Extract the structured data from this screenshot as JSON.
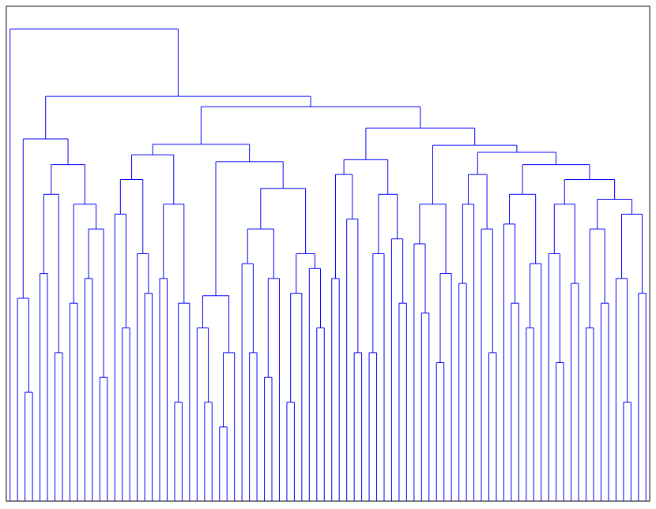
{
  "chart_data": {
    "type": "dendrogram",
    "color": "#0000ff",
    "ylim": [
      0,
      100
    ],
    "tree": {
      "height": 95.4,
      "children": [
        0,
        {
          "height": 81.8,
          "children": [
            {
              "height": 73.2,
              "children": [
                {
                  "height": 41,
                  "children": [
                    0,
                    {
                      "height": 22,
                      "children": [
                        0,
                        0
                      ]
                    }
                  ]
                },
                {
                  "height": 68,
                  "children": [
                    {
                      "height": 62,
                      "children": [
                        {
                          "height": 46,
                          "children": [
                            0,
                            0
                          ]
                        },
                        {
                          "height": 30,
                          "children": [
                            0,
                            0
                          ]
                        }
                      ]
                    },
                    {
                      "height": 60,
                      "children": [
                        {
                          "height": 40,
                          "children": [
                            0,
                            0
                          ]
                        },
                        {
                          "height": 55,
                          "children": [
                            {
                              "height": 45,
                              "children": [
                                0,
                                0
                              ]
                            },
                            {
                              "height": 25,
                              "children": [
                                0,
                                0
                              ]
                            }
                          ]
                        }
                      ]
                    }
                  ]
                }
              ]
            },
            {
              "height": 79.7,
              "children": [
                {
                  "height": 72.1,
                  "children": [
                    {
                      "height": 70,
                      "children": [
                        {
                          "height": 65,
                          "children": [
                            {
                              "height": 58,
                              "children": [
                                0,
                                {
                                  "height": 35,
                                  "children": [
                                    0,
                                    0
                                  ]
                                }
                              ]
                            },
                            {
                              "height": 50,
                              "children": [
                                0,
                                {
                                  "height": 42,
                                  "children": [
                                    0,
                                    0
                                  ]
                                }
                              ]
                            }
                          ]
                        },
                        {
                          "height": 60,
                          "children": [
                            {
                              "height": 45,
                              "children": [
                                0,
                                0
                              ]
                            },
                            {
                              "height": 40,
                              "children": [
                                {
                                  "height": 20,
                                  "children": [
                                    0,
                                    0
                                  ]
                                },
                                0
                              ]
                            }
                          ]
                        }
                      ]
                    },
                    {
                      "height": 68.6,
                      "children": [
                        {
                          "height": 41.5,
                          "children": [
                            {
                              "height": 35,
                              "children": [
                                0,
                                {
                                  "height": 20,
                                  "children": [
                                    0,
                                    0
                                  ]
                                }
                              ]
                            },
                            {
                              "height": 30,
                              "children": [
                                {
                                  "height": 15,
                                  "children": [
                                    0,
                                    0
                                  ]
                                },
                                0
                              ]
                            }
                          ]
                        },
                        {
                          "height": 63.2,
                          "children": [
                            {
                              "height": 55,
                              "children": [
                                {
                                  "height": 48,
                                  "children": [
                                    0,
                                    {
                                      "height": 30,
                                      "children": [
                                        0,
                                        0
                                      ]
                                    }
                                  ]
                                },
                                {
                                  "height": 45,
                                  "children": [
                                    {
                                      "height": 25,
                                      "children": [
                                        0,
                                        0
                                      ]
                                    },
                                    0
                                  ]
                                }
                              ]
                            },
                            {
                              "height": 50,
                              "children": [
                                {
                                  "height": 42,
                                  "children": [
                                    {
                                      "height": 20,
                                      "children": [
                                        0,
                                        0
                                      ]
                                    },
                                    0
                                  ]
                                },
                                {
                                  "height": 47,
                                  "children": [
                                    0,
                                    {
                                      "height": 35,
                                      "children": [
                                        0,
                                        0
                                      ]
                                    }
                                  ]
                                }
                              ]
                            }
                          ]
                        }
                      ]
                    }
                  ]
                },
                {
                  "height": 75.4,
                  "children": [
                    {
                      "height": 69,
                      "children": [
                        {
                          "height": 66,
                          "children": [
                            {
                              "height": 45,
                              "children": [
                                0,
                                0
                              ]
                            },
                            {
                              "height": 57,
                              "children": [
                                0,
                                {
                                  "height": 30,
                                  "children": [
                                    0,
                                    0
                                  ]
                                }
                              ]
                            }
                          ]
                        },
                        {
                          "height": 62,
                          "children": [
                            {
                              "height": 50,
                              "children": [
                                {
                                  "height": 30,
                                  "children": [
                                    0,
                                    0
                                  ]
                                },
                                0
                              ]
                            },
                            {
                              "height": 53,
                              "children": [
                                0,
                                {
                                  "height": 40,
                                  "children": [
                                    0,
                                    0
                                  ]
                                }
                              ]
                            }
                          ]
                        }
                      ]
                    },
                    {
                      "height": 71.9,
                      "children": [
                        {
                          "height": 60,
                          "children": [
                            {
                              "height": 52,
                              "children": [
                                0,
                                {
                                  "height": 38,
                                  "children": [
                                    0,
                                    0
                                  ]
                                }
                              ]
                            },
                            {
                              "height": 46,
                              "children": [
                                {
                                  "height": 28,
                                  "children": [
                                    0,
                                    0
                                  ]
                                },
                                0
                              ]
                            }
                          ]
                        },
                        {
                          "height": 70.5,
                          "children": [
                            {
                              "height": 66,
                              "children": [
                                {
                                  "height": 60,
                                  "children": [
                                    {
                                      "height": 44,
                                      "children": [
                                        0,
                                        0
                                      ]
                                    },
                                    0
                                  ]
                                },
                                {
                                  "height": 55,
                                  "children": [
                                    0,
                                    {
                                      "height": 30,
                                      "children": [
                                        0,
                                        0
                                      ]
                                    }
                                  ]
                                }
                              ]
                            },
                            {
                              "height": 68,
                              "children": [
                                {
                                  "height": 62,
                                  "children": [
                                    {
                                      "height": 56,
                                      "children": [
                                        0,
                                        {
                                          "height": 40,
                                          "children": [
                                            0,
                                            0
                                          ]
                                        }
                                      ]
                                    },
                                    {
                                      "height": 48,
                                      "children": [
                                        {
                                          "height": 35,
                                          "children": [
                                            0,
                                            0
                                          ]
                                        },
                                        0
                                      ]
                                    }
                                  ]
                                },
                                {
                                  "height": 65,
                                  "children": [
                                    {
                                      "height": 60,
                                      "children": [
                                        {
                                          "height": 50,
                                          "children": [
                                            0,
                                            {
                                              "height": 28,
                                              "children": [
                                                0,
                                                0
                                              ]
                                            }
                                          ]
                                        },
                                        {
                                          "height": 44,
                                          "children": [
                                            0,
                                            0
                                          ]
                                        }
                                      ]
                                    },
                                    {
                                      "height": 61,
                                      "children": [
                                        {
                                          "height": 55,
                                          "children": [
                                            {
                                              "height": 35,
                                              "children": [
                                                0,
                                                0
                                              ]
                                            },
                                            {
                                              "height": 40,
                                              "children": [
                                                0,
                                                0
                                              ]
                                            }
                                          ]
                                        },
                                        {
                                          "height": 58,
                                          "children": [
                                            {
                                              "height": 45,
                                              "children": [
                                                0,
                                                {
                                                  "height": 20,
                                                  "children": [
                                                    0,
                                                    0
                                                  ]
                                                }
                                              ]
                                            },
                                            {
                                              "height": 42,
                                              "children": [
                                                0,
                                                0
                                              ]
                                            }
                                          ]
                                        }
                                      ]
                                    }
                                  ]
                                }
                              ]
                            }
                          ]
                        }
                      ]
                    }
                  ]
                }
              ]
            }
          ]
        }
      ]
    }
  }
}
